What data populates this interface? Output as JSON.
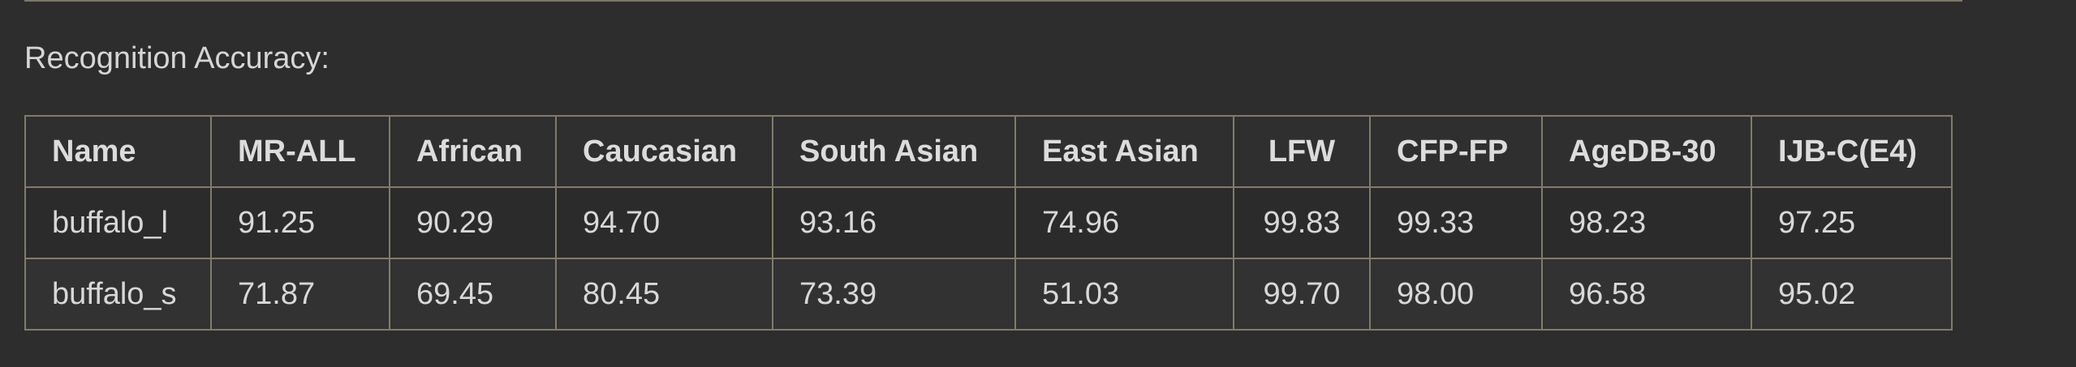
{
  "caption": "Recognition Accuracy:",
  "table": {
    "headers": [
      "Name",
      "MR-ALL",
      "African",
      "Caucasian",
      "South Asian",
      "East Asian",
      "LFW",
      "CFP-FP",
      "AgeDB-30",
      "IJB-C(E4)"
    ],
    "rows": [
      [
        "buffalo_l",
        "91.25",
        "90.29",
        "94.70",
        "93.16",
        "74.96",
        "99.83",
        "99.33",
        "98.23",
        "97.25"
      ],
      [
        "buffalo_s",
        "71.87",
        "69.45",
        "80.45",
        "73.39",
        "51.03",
        "99.70",
        "98.00",
        "96.58",
        "95.02"
      ]
    ]
  }
}
